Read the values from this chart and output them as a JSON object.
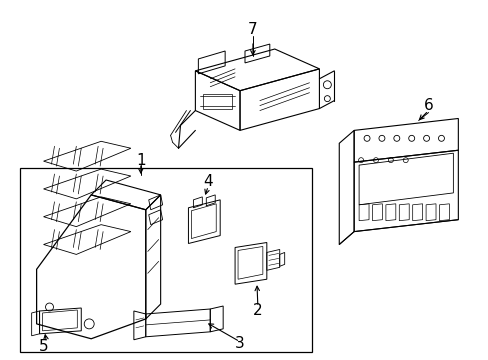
{
  "background_color": "#ffffff",
  "line_color": "#000000",
  "fig_width": 4.89,
  "fig_height": 3.6,
  "dpi": 100,
  "font_size": 10,
  "label_fontsize": 10
}
